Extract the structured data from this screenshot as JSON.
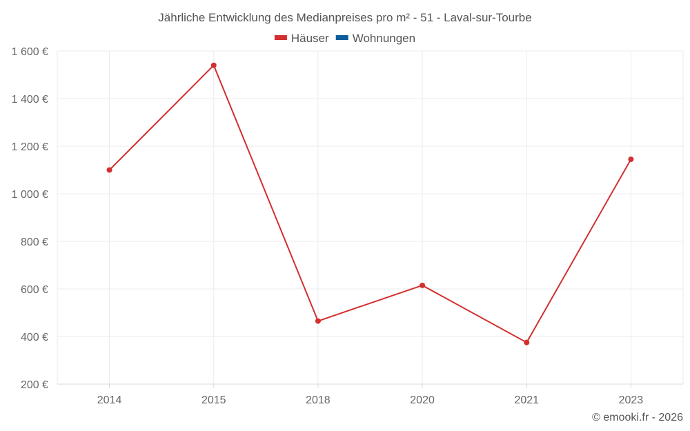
{
  "chart_data": {
    "type": "line",
    "title": "Jährliche Entwicklung des Medianpreises pro m² - 51 - Laval-sur-Tourbe",
    "categories": [
      "2014",
      "2015",
      "2018",
      "2020",
      "2021",
      "2023"
    ],
    "series": [
      {
        "name": "Häuser",
        "color": "#d32f2f",
        "values": [
          1100,
          1540,
          465,
          615,
          375,
          1145
        ]
      },
      {
        "name": "Wohnungen",
        "color": "#0b5e9c",
        "values": [
          null,
          null,
          null,
          null,
          null,
          null
        ]
      }
    ],
    "ylim": [
      200,
      1600
    ],
    "yticks": [
      200,
      400,
      600,
      800,
      1000,
      1200,
      1400,
      1600
    ],
    "ytick_labels": [
      "200 €",
      "400 €",
      "600 €",
      "800 €",
      "1 000 €",
      "1 200 €",
      "1 400 €",
      "1 600 €"
    ],
    "grid": true,
    "legend_position": "top-center"
  },
  "credit": "© emooki.fr - 2026"
}
